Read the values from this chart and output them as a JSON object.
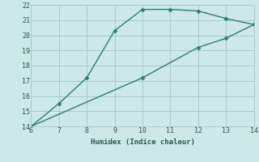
{
  "xlabel": "Humidex (Indice chaleur)",
  "bg_color": "#cce8e8",
  "grid_color": "#a8cccc",
  "line_color": "#2e7d6e",
  "xlim": [
    6,
    14
  ],
  "ylim": [
    14,
    22
  ],
  "xticks": [
    6,
    7,
    8,
    9,
    10,
    11,
    12,
    13,
    14
  ],
  "yticks": [
    14,
    15,
    16,
    17,
    18,
    19,
    20,
    21,
    22
  ],
  "line1_x": [
    6,
    7,
    8,
    9,
    10,
    11,
    12,
    13,
    14
  ],
  "line1_y": [
    14.0,
    15.5,
    17.2,
    20.3,
    21.7,
    21.7,
    21.6,
    21.1,
    20.7
  ],
  "line2_x": [
    6,
    10,
    12,
    13,
    14
  ],
  "line2_y": [
    14.0,
    17.2,
    19.2,
    19.8,
    20.7
  ]
}
